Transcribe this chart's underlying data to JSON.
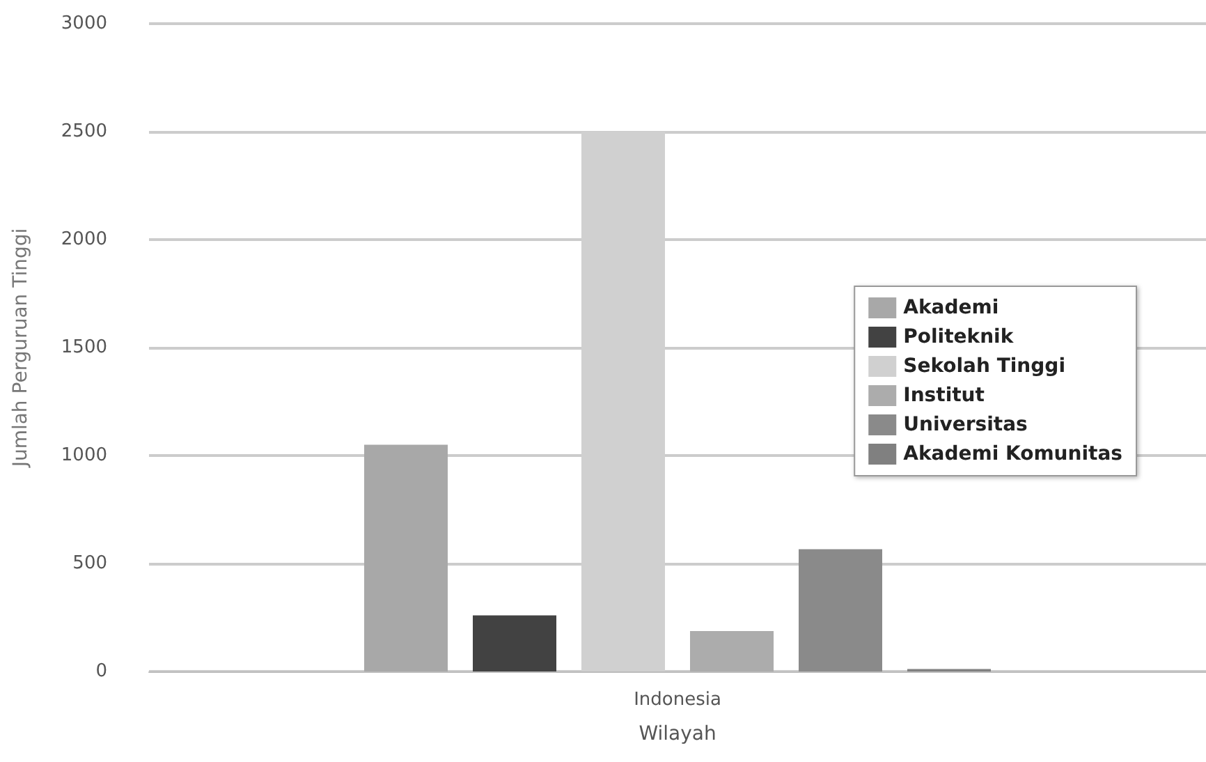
{
  "chart_data": {
    "type": "bar",
    "xlabel": "Wilayah",
    "ylabel": "Jumlah Perguruan Tinggi",
    "categories": [
      "Indonesia"
    ],
    "series": [
      {
        "name": "Akademi",
        "color": "#a8a8a8",
        "values": [
          1050
        ]
      },
      {
        "name": "Politeknik",
        "color": "#424242",
        "values": [
          260
        ]
      },
      {
        "name": "Sekolah Tinggi",
        "color": "#d0d0d0",
        "values": [
          2500
        ]
      },
      {
        "name": "Institut",
        "color": "#acacac",
        "values": [
          187
        ]
      },
      {
        "name": "Universitas",
        "color": "#8a8a8a",
        "values": [
          566
        ]
      },
      {
        "name": "Akademi Komunitas",
        "color": "#808080",
        "values": [
          11
        ]
      }
    ],
    "ylim": [
      0,
      3000
    ],
    "yticks": [
      0,
      500,
      1000,
      1500,
      2000,
      2500,
      3000
    ],
    "grid": "y",
    "legend": "right"
  }
}
